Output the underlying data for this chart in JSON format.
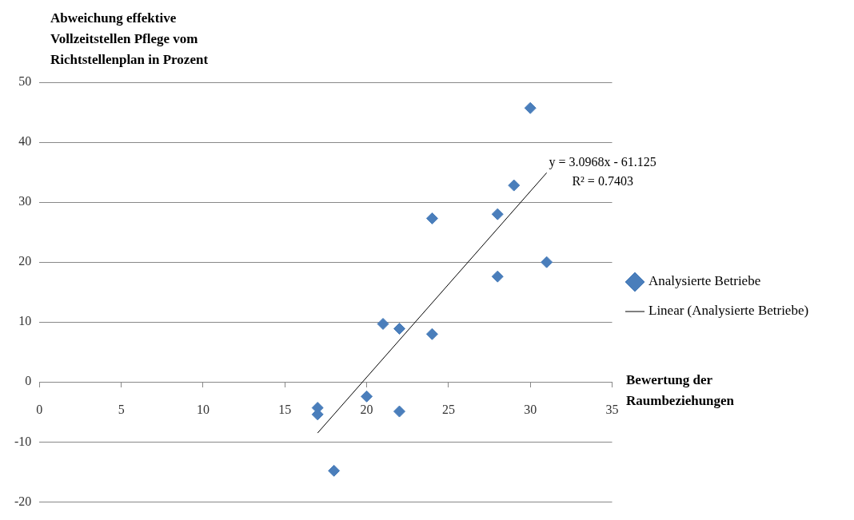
{
  "chart_data": {
    "type": "scatter",
    "ylabel": "Abweichung effektive Vollzeitstellen Pflege vom Richtstellenplan in Prozent",
    "xlabel": "Bewertung der Raumbeziehungen",
    "series": [
      {
        "name": "Analysierte Betriebe",
        "color": "#4a7ebb",
        "x": [
          17,
          17,
          18,
          20,
          21,
          22,
          22,
          24,
          24,
          28,
          28,
          29,
          30,
          31
        ],
        "values": [
          -4.3,
          -5.4,
          -14.8,
          -2.4,
          9.7,
          8.9,
          -4.9,
          27.3,
          8,
          28,
          17.6,
          32.8,
          45.7,
          20
        ]
      },
      {
        "name": "Linear (Analysierte Betriebe)",
        "type": "line",
        "color": "#000000",
        "x": [
          17,
          31
        ],
        "values": [
          -8.5,
          34.9
        ],
        "marker": "none"
      }
    ],
    "annotations": [
      "y = 3.0968x - 61.125",
      "R² = 0.7403"
    ],
    "xlim": [
      0,
      35
    ],
    "xticks": [
      0,
      5,
      10,
      15,
      20,
      25,
      30,
      35
    ],
    "ylim": [
      -20,
      50
    ],
    "yticks": [
      -20,
      -10,
      0,
      10,
      20,
      30,
      40,
      50
    ],
    "grid": "y",
    "legend": "right",
    "marker": "diamond"
  }
}
